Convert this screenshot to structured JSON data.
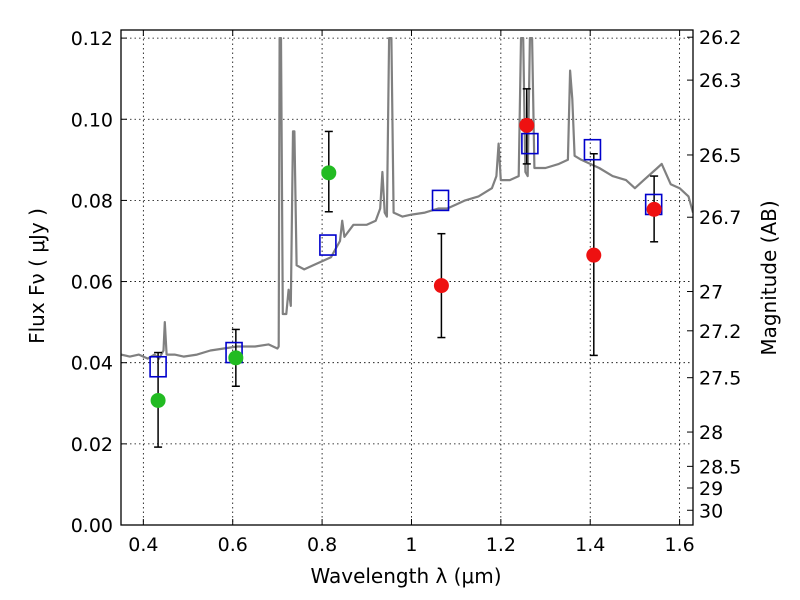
{
  "chart_data": {
    "type": "scatter",
    "xlabel": "Wavelength  λ (μm)",
    "ylabel_left": "Flux  Fν  ( μJy )",
    "ylabel_right": "Magnitude (AB)",
    "xlim": [
      0.35,
      1.63
    ],
    "ylim": [
      0.0,
      0.122
    ],
    "grid": true,
    "x_ticks": [
      {
        "value": 0.4,
        "label": "0.4"
      },
      {
        "value": 0.6,
        "label": "0.6"
      },
      {
        "value": 0.8,
        "label": "0.8"
      },
      {
        "value": 1.0,
        "label": "1"
      },
      {
        "value": 1.2,
        "label": "1.2"
      },
      {
        "value": 1.4,
        "label": "1.4"
      },
      {
        "value": 1.6,
        "label": "1.6"
      }
    ],
    "y_ticks": [
      {
        "value": 0.0,
        "label": "0.00"
      },
      {
        "value": 0.02,
        "label": "0.02"
      },
      {
        "value": 0.04,
        "label": "0.04"
      },
      {
        "value": 0.06,
        "label": "0.06"
      },
      {
        "value": 0.08,
        "label": "0.08"
      },
      {
        "value": 0.1,
        "label": "0.10"
      },
      {
        "value": 0.12,
        "label": "0.12"
      }
    ],
    "right_ticks": [
      {
        "mag": 26.2,
        "label": "26.2"
      },
      {
        "mag": 26.3,
        "label": "26.3"
      },
      {
        "mag": 26.5,
        "label": "26.5"
      },
      {
        "mag": 26.7,
        "label": "26.7"
      },
      {
        "mag": 27.0,
        "label": "27"
      },
      {
        "mag": 27.2,
        "label": "27.2"
      },
      {
        "mag": 27.5,
        "label": "27.5"
      },
      {
        "mag": 28.0,
        "label": "28"
      },
      {
        "mag": 28.5,
        "label": "28.5"
      },
      {
        "mag": 29.0,
        "label": "29"
      },
      {
        "mag": 30.0,
        "label": "30"
      }
    ],
    "series": [
      {
        "kind": "line",
        "color": "#808080",
        "points": [
          [
            0.35,
            0.042
          ],
          [
            0.37,
            0.0415
          ],
          [
            0.39,
            0.042
          ],
          [
            0.41,
            0.041
          ],
          [
            0.425,
            0.042
          ],
          [
            0.435,
            0.041
          ],
          [
            0.445,
            0.043
          ],
          [
            0.448,
            0.05
          ],
          [
            0.452,
            0.042
          ],
          [
            0.47,
            0.042
          ],
          [
            0.49,
            0.0415
          ],
          [
            0.52,
            0.042
          ],
          [
            0.55,
            0.043
          ],
          [
            0.58,
            0.0435
          ],
          [
            0.61,
            0.044
          ],
          [
            0.65,
            0.044
          ],
          [
            0.68,
            0.0445
          ],
          [
            0.7,
            0.0435
          ],
          [
            0.703,
            0.044
          ],
          [
            0.705,
            0.12
          ],
          [
            0.708,
            0.12
          ],
          [
            0.712,
            0.052
          ],
          [
            0.72,
            0.052
          ],
          [
            0.725,
            0.058
          ],
          [
            0.73,
            0.054
          ],
          [
            0.735,
            0.097
          ],
          [
            0.738,
            0.097
          ],
          [
            0.743,
            0.064
          ],
          [
            0.76,
            0.063
          ],
          [
            0.78,
            0.064
          ],
          [
            0.8,
            0.065
          ],
          [
            0.82,
            0.066
          ],
          [
            0.84,
            0.07
          ],
          [
            0.845,
            0.075
          ],
          [
            0.85,
            0.071
          ],
          [
            0.87,
            0.074
          ],
          [
            0.9,
            0.074
          ],
          [
            0.92,
            0.075
          ],
          [
            0.93,
            0.078
          ],
          [
            0.935,
            0.087
          ],
          [
            0.94,
            0.077
          ],
          [
            0.945,
            0.076
          ],
          [
            0.95,
            0.12
          ],
          [
            0.955,
            0.12
          ],
          [
            0.96,
            0.077
          ],
          [
            0.98,
            0.076
          ],
          [
            1.0,
            0.0765
          ],
          [
            1.03,
            0.077
          ],
          [
            1.06,
            0.078
          ],
          [
            1.08,
            0.078
          ],
          [
            1.1,
            0.079
          ],
          [
            1.12,
            0.08
          ],
          [
            1.15,
            0.081
          ],
          [
            1.18,
            0.083
          ],
          [
            1.19,
            0.086
          ],
          [
            1.195,
            0.094
          ],
          [
            1.2,
            0.085
          ],
          [
            1.22,
            0.085
          ],
          [
            1.24,
            0.086
          ],
          [
            1.245,
            0.12
          ],
          [
            1.25,
            0.12
          ],
          [
            1.255,
            0.087
          ],
          [
            1.26,
            0.086
          ],
          [
            1.265,
            0.12
          ],
          [
            1.27,
            0.12
          ],
          [
            1.275,
            0.088
          ],
          [
            1.3,
            0.088
          ],
          [
            1.33,
            0.089
          ],
          [
            1.35,
            0.09
          ],
          [
            1.355,
            0.112
          ],
          [
            1.36,
            0.105
          ],
          [
            1.365,
            0.091
          ],
          [
            1.38,
            0.09
          ],
          [
            1.4,
            0.089
          ],
          [
            1.42,
            0.088
          ],
          [
            1.45,
            0.086
          ],
          [
            1.48,
            0.085
          ],
          [
            1.5,
            0.083
          ],
          [
            1.52,
            0.085
          ],
          [
            1.55,
            0.088
          ],
          [
            1.56,
            0.089
          ],
          [
            1.58,
            0.084
          ],
          [
            1.6,
            0.083
          ],
          [
            1.62,
            0.081
          ],
          [
            1.63,
            0.077
          ]
        ]
      },
      {
        "kind": "errorbar",
        "color": "#000000",
        "points": [
          {
            "x": 0.433,
            "ylo": 0.0192,
            "yhi": 0.0425
          },
          {
            "x": 0.607,
            "ylo": 0.0342,
            "yhi": 0.0482
          },
          {
            "x": 0.815,
            "ylo": 0.0772,
            "yhi": 0.097
          },
          {
            "x": 1.067,
            "ylo": 0.0462,
            "yhi": 0.0718
          },
          {
            "x": 1.258,
            "ylo": 0.089,
            "yhi": 0.1075
          },
          {
            "x": 1.408,
            "ylo": 0.0418,
            "yhi": 0.0915
          },
          {
            "x": 1.543,
            "ylo": 0.0698,
            "yhi": 0.086
          }
        ]
      },
      {
        "kind": "squares",
        "color": "#0000cc",
        "points": [
          [
            0.433,
            0.039
          ],
          [
            0.603,
            0.0425
          ],
          [
            0.813,
            0.069
          ],
          [
            1.065,
            0.08
          ],
          [
            1.265,
            0.094
          ],
          [
            1.405,
            0.0925
          ],
          [
            1.542,
            0.079
          ]
        ]
      },
      {
        "kind": "dots",
        "color": "#22bb22",
        "points": [
          [
            0.433,
            0.0307
          ],
          [
            0.607,
            0.0412
          ],
          [
            0.815,
            0.0868
          ]
        ]
      },
      {
        "kind": "dots",
        "color": "#ee1111",
        "points": [
          [
            1.067,
            0.059
          ],
          [
            1.258,
            0.0985
          ],
          [
            1.408,
            0.0665
          ],
          [
            1.543,
            0.0778
          ]
        ]
      }
    ]
  }
}
